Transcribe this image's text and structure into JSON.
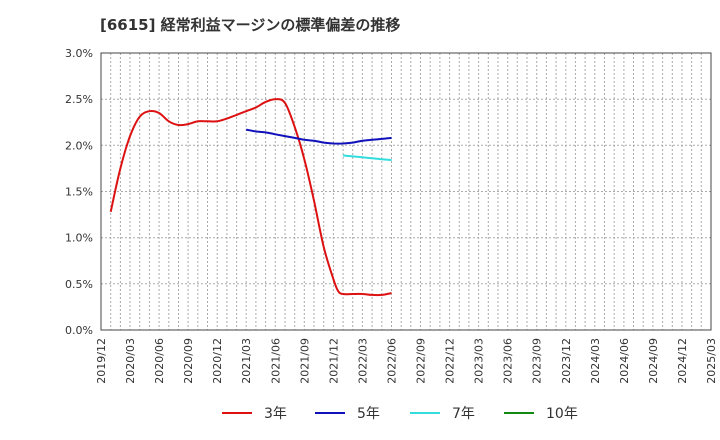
{
  "chart_data": {
    "type": "line",
    "title": "[6615]  経常利益マージンの標準偏差の推移",
    "xlabel": "",
    "ylabel": "",
    "ylim": [
      0,
      3.0
    ],
    "yticks": [
      "0.0%",
      "0.5%",
      "1.0%",
      "1.5%",
      "2.0%",
      "2.5%",
      "3.0%"
    ],
    "ytick_values": [
      0,
      0.5,
      1.0,
      1.5,
      2.0,
      2.5,
      3.0
    ],
    "categories": [
      "2019/12",
      "2020/03",
      "2020/06",
      "2020/09",
      "2020/12",
      "2021/03",
      "2021/06",
      "2021/09",
      "2021/12",
      "2022/03",
      "2022/06",
      "2022/09",
      "2022/12",
      "2023/03",
      "2023/06",
      "2023/09",
      "2023/12",
      "2024/03",
      "2024/06",
      "2024/09",
      "2024/12",
      "2025/03"
    ],
    "grid": true,
    "legend_position": "bottom",
    "series": [
      {
        "name": "3年",
        "color": "#dd1111",
        "points": [
          [
            1,
            1.28
          ],
          [
            2,
            1.75
          ],
          [
            3,
            2.1
          ],
          [
            4,
            2.31
          ],
          [
            5,
            2.37
          ],
          [
            6,
            2.35
          ],
          [
            7,
            2.26
          ],
          [
            8,
            2.22
          ],
          [
            9,
            2.23
          ],
          [
            10,
            2.26
          ],
          [
            11,
            2.26
          ],
          [
            12,
            2.26
          ],
          [
            13,
            2.29
          ],
          [
            14,
            2.33
          ],
          [
            15,
            2.37
          ],
          [
            16,
            2.41
          ],
          [
            17,
            2.47
          ],
          [
            18,
            2.5
          ],
          [
            19,
            2.46
          ],
          [
            20,
            2.2
          ],
          [
            21,
            1.85
          ],
          [
            22,
            1.4
          ],
          [
            23,
            0.9
          ],
          [
            24,
            0.55
          ],
          [
            24.5,
            0.42
          ],
          [
            25,
            0.39
          ],
          [
            26,
            0.39
          ],
          [
            27,
            0.39
          ],
          [
            28,
            0.38
          ],
          [
            29,
            0.38
          ],
          [
            30,
            0.4
          ]
        ]
      },
      {
        "name": "5年",
        "color": "#1111bb",
        "points": [
          [
            15,
            2.17
          ],
          [
            16,
            2.15
          ],
          [
            17,
            2.14
          ],
          [
            18,
            2.12
          ],
          [
            19,
            2.1
          ],
          [
            20,
            2.08
          ],
          [
            21,
            2.06
          ],
          [
            22,
            2.05
          ],
          [
            23,
            2.03
          ],
          [
            24,
            2.02
          ],
          [
            25,
            2.02
          ],
          [
            26,
            2.03
          ],
          [
            27,
            2.05
          ],
          [
            28,
            2.06
          ],
          [
            29,
            2.07
          ],
          [
            30,
            2.08
          ]
        ]
      },
      {
        "name": "7年",
        "color": "#33dddd",
        "points": [
          [
            25,
            1.89
          ],
          [
            26,
            1.88
          ],
          [
            27,
            1.87
          ],
          [
            28,
            1.86
          ],
          [
            29,
            1.85
          ],
          [
            30,
            1.84
          ]
        ]
      },
      {
        "name": "10年",
        "color": "#118811",
        "points": []
      }
    ]
  }
}
